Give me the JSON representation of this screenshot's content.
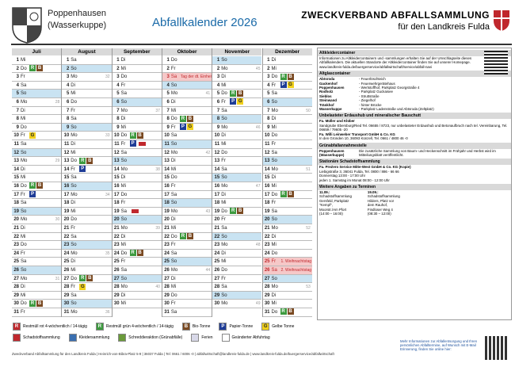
{
  "header": {
    "municipality": [
      "Poppenhausen",
      "(Wasserkuppe)"
    ],
    "title": "Abfallkalender 2026",
    "org": "ZWECKVERBAND ABFALLSAMMLUNG",
    "org_sub": "für den Landkreis Fulda"
  },
  "symbol_colors": {
    "R": "#3d9a3f",
    "B": "#7a4a22",
    "P": "#1e3c96",
    "G": "#f0d01c",
    "S": "#c0282d"
  },
  "months": [
    {
      "name": "Juli",
      "days": [
        {
          "d": 1,
          "w": "Mi"
        },
        {
          "d": 2,
          "w": "Do",
          "ev": [
            "R",
            "B"
          ]
        },
        {
          "d": 3,
          "w": "Fr"
        },
        {
          "d": 4,
          "w": "Sa"
        },
        {
          "d": 5,
          "w": "So"
        },
        {
          "d": 6,
          "w": "Mo",
          "kw": 28
        },
        {
          "d": 7,
          "w": "Di"
        },
        {
          "d": 8,
          "w": "Mi"
        },
        {
          "d": 9,
          "w": "Do"
        },
        {
          "d": 10,
          "w": "Fr",
          "ev": [
            "G"
          ]
        },
        {
          "d": 11,
          "w": "Sa"
        },
        {
          "d": 12,
          "w": "So"
        },
        {
          "d": 13,
          "w": "Mo",
          "kw": 29
        },
        {
          "d": 14,
          "w": "Di"
        },
        {
          "d": 15,
          "w": "Mi"
        },
        {
          "d": 16,
          "w": "Do",
          "ev": [
            "R",
            "B"
          ]
        },
        {
          "d": 17,
          "w": "Fr",
          "ev": [
            "P"
          ]
        },
        {
          "d": 18,
          "w": "Sa"
        },
        {
          "d": 19,
          "w": "So"
        },
        {
          "d": 20,
          "w": "Mo",
          "kw": 30
        },
        {
          "d": 21,
          "w": "Di"
        },
        {
          "d": 22,
          "w": "Mi"
        },
        {
          "d": 23,
          "w": "Do"
        },
        {
          "d": 24,
          "w": "Fr"
        },
        {
          "d": 25,
          "w": "Sa"
        },
        {
          "d": 26,
          "w": "So"
        },
        {
          "d": 27,
          "w": "Mo",
          "kw": 31
        },
        {
          "d": 28,
          "w": "Di"
        },
        {
          "d": 29,
          "w": "Mi"
        },
        {
          "d": 30,
          "w": "Do",
          "ev": [
            "R",
            "B"
          ]
        },
        {
          "d": 31,
          "w": "Fr"
        }
      ]
    },
    {
      "name": "August",
      "days": [
        {
          "d": 1,
          "w": "Sa"
        },
        {
          "d": 2,
          "w": "So"
        },
        {
          "d": 3,
          "w": "Mo",
          "kw": 32
        },
        {
          "d": 4,
          "w": "Di"
        },
        {
          "d": 5,
          "w": "Mi"
        },
        {
          "d": 6,
          "w": "Do"
        },
        {
          "d": 7,
          "w": "Fr"
        },
        {
          "d": 8,
          "w": "Sa"
        },
        {
          "d": 9,
          "w": "So"
        },
        {
          "d": 10,
          "w": "Mo",
          "kw": 33
        },
        {
          "d": 11,
          "w": "Di"
        },
        {
          "d": 12,
          "w": "Mi"
        },
        {
          "d": 13,
          "w": "Do",
          "ev": [
            "R",
            "B"
          ]
        },
        {
          "d": 14,
          "w": "Fr",
          "ev": [
            "P"
          ]
        },
        {
          "d": 15,
          "w": "Sa"
        },
        {
          "d": 16,
          "w": "So"
        },
        {
          "d": 17,
          "w": "Mo",
          "kw": 34
        },
        {
          "d": 18,
          "w": "Di"
        },
        {
          "d": 19,
          "w": "Mi"
        },
        {
          "d": 20,
          "w": "Do"
        },
        {
          "d": 21,
          "w": "Fr"
        },
        {
          "d": 22,
          "w": "Sa"
        },
        {
          "d": 23,
          "w": "So"
        },
        {
          "d": 24,
          "w": "Mo",
          "kw": 35
        },
        {
          "d": 25,
          "w": "Di"
        },
        {
          "d": 26,
          "w": "Mi"
        },
        {
          "d": 27,
          "w": "Do",
          "ev": [
            "R",
            "B"
          ]
        },
        {
          "d": 28,
          "w": "Fr",
          "ev": [
            "G"
          ]
        },
        {
          "d": 29,
          "w": "Sa"
        },
        {
          "d": 30,
          "w": "So"
        },
        {
          "d": 31,
          "w": "Mo",
          "kw": 36
        }
      ]
    },
    {
      "name": "September",
      "days": [
        {
          "d": 1,
          "w": "Di"
        },
        {
          "d": 2,
          "w": "Mi"
        },
        {
          "d": 3,
          "w": "Do"
        },
        {
          "d": 4,
          "w": "Fr"
        },
        {
          "d": 5,
          "w": "Sa"
        },
        {
          "d": 6,
          "w": "So"
        },
        {
          "d": 7,
          "w": "Mo",
          "kw": 37
        },
        {
          "d": 8,
          "w": "Di"
        },
        {
          "d": 9,
          "w": "Mi"
        },
        {
          "d": 10,
          "w": "Do",
          "ev": [
            "R",
            "B"
          ]
        },
        {
          "d": 11,
          "w": "Fr",
          "ev": [
            "P",
            "S"
          ]
        },
        {
          "d": 12,
          "w": "Sa"
        },
        {
          "d": 13,
          "w": "So"
        },
        {
          "d": 14,
          "w": "Mo",
          "kw": 38
        },
        {
          "d": 15,
          "w": "Di"
        },
        {
          "d": 16,
          "w": "Mi"
        },
        {
          "d": 17,
          "w": "Do"
        },
        {
          "d": 18,
          "w": "Fr"
        },
        {
          "d": 19,
          "w": "Sa",
          "ev": [
            "S"
          ]
        },
        {
          "d": 20,
          "w": "So"
        },
        {
          "d": 21,
          "w": "Mo",
          "kw": 39
        },
        {
          "d": 22,
          "w": "Di"
        },
        {
          "d": 23,
          "w": "Mi"
        },
        {
          "d": 24,
          "w": "Do",
          "ev": [
            "R",
            "B"
          ]
        },
        {
          "d": 25,
          "w": "Fr"
        },
        {
          "d": 26,
          "w": "Sa"
        },
        {
          "d": 27,
          "w": "So"
        },
        {
          "d": 28,
          "w": "Mo",
          "kw": 40
        },
        {
          "d": 29,
          "w": "Di"
        },
        {
          "d": 30,
          "w": "Mi"
        }
      ]
    },
    {
      "name": "Oktober",
      "days": [
        {
          "d": 1,
          "w": "Do"
        },
        {
          "d": 2,
          "w": "Fr"
        },
        {
          "d": 3,
          "w": "Sa",
          "holiday": true,
          "note": "Tag der dt. Einheit"
        },
        {
          "d": 4,
          "w": "So"
        },
        {
          "d": 5,
          "w": "Mo",
          "kw": 41
        },
        {
          "d": 6,
          "w": "Di"
        },
        {
          "d": 7,
          "w": "Mi"
        },
        {
          "d": 8,
          "w": "Do",
          "ev": [
            "R",
            "B"
          ]
        },
        {
          "d": 9,
          "w": "Fr",
          "ev": [
            "P",
            "G"
          ]
        },
        {
          "d": 10,
          "w": "Sa"
        },
        {
          "d": 11,
          "w": "So"
        },
        {
          "d": 12,
          "w": "Mo",
          "kw": 42
        },
        {
          "d": 13,
          "w": "Di"
        },
        {
          "d": 14,
          "w": "Mi"
        },
        {
          "d": 15,
          "w": "Do"
        },
        {
          "d": 16,
          "w": "Fr"
        },
        {
          "d": 17,
          "w": "Sa"
        },
        {
          "d": 18,
          "w": "So"
        },
        {
          "d": 19,
          "w": "Mo",
          "kw": 43
        },
        {
          "d": 20,
          "w": "Di"
        },
        {
          "d": 21,
          "w": "Mi"
        },
        {
          "d": 22,
          "w": "Do",
          "ev": [
            "R",
            "B"
          ]
        },
        {
          "d": 23,
          "w": "Fr"
        },
        {
          "d": 24,
          "w": "Sa"
        },
        {
          "d": 25,
          "w": "So"
        },
        {
          "d": 26,
          "w": "Mo",
          "kw": 44
        },
        {
          "d": 27,
          "w": "Di"
        },
        {
          "d": 28,
          "w": "Mi"
        },
        {
          "d": 29,
          "w": "Do"
        },
        {
          "d": 30,
          "w": "Fr"
        },
        {
          "d": 31,
          "w": "Sa"
        }
      ]
    },
    {
      "name": "November",
      "days": [
        {
          "d": 1,
          "w": "So"
        },
        {
          "d": 2,
          "w": "Mo",
          "kw": 45
        },
        {
          "d": 3,
          "w": "Di"
        },
        {
          "d": 4,
          "w": "Mi"
        },
        {
          "d": 5,
          "w": "Do",
          "ev": [
            "R",
            "B"
          ]
        },
        {
          "d": 6,
          "w": "Fr",
          "ev": [
            "P",
            "G"
          ]
        },
        {
          "d": 7,
          "w": "Sa"
        },
        {
          "d": 8,
          "w": "So"
        },
        {
          "d": 9,
          "w": "Mo",
          "kw": 46
        },
        {
          "d": 10,
          "w": "Di"
        },
        {
          "d": 11,
          "w": "Mi"
        },
        {
          "d": 12,
          "w": "Do"
        },
        {
          "d": 13,
          "w": "Fr"
        },
        {
          "d": 14,
          "w": "Sa"
        },
        {
          "d": 15,
          "w": "So"
        },
        {
          "d": 16,
          "w": "Mo",
          "kw": 47
        },
        {
          "d": 17,
          "w": "Di"
        },
        {
          "d": 18,
          "w": "Mi"
        },
        {
          "d": 19,
          "w": "Do",
          "ev": [
            "R",
            "B"
          ]
        },
        {
          "d": 20,
          "w": "Fr"
        },
        {
          "d": 21,
          "w": "Sa"
        },
        {
          "d": 22,
          "w": "So"
        },
        {
          "d": 23,
          "w": "Mo",
          "kw": 48
        },
        {
          "d": 24,
          "w": "Di"
        },
        {
          "d": 25,
          "w": "Mi"
        },
        {
          "d": 26,
          "w": "Do"
        },
        {
          "d": 27,
          "w": "Fr"
        },
        {
          "d": 28,
          "w": "Sa"
        },
        {
          "d": 29,
          "w": "So"
        },
        {
          "d": 30,
          "w": "Mo",
          "kw": 49
        }
      ]
    },
    {
      "name": "Dezember",
      "days": [
        {
          "d": 1,
          "w": "Di"
        },
        {
          "d": 2,
          "w": "Mi"
        },
        {
          "d": 3,
          "w": "Do",
          "ev": [
            "R",
            "B"
          ]
        },
        {
          "d": 4,
          "w": "Fr",
          "ev": [
            "P",
            "G"
          ]
        },
        {
          "d": 5,
          "w": "Sa"
        },
        {
          "d": 6,
          "w": "So"
        },
        {
          "d": 7,
          "w": "Mo",
          "kw": 50
        },
        {
          "d": 8,
          "w": "Di"
        },
        {
          "d": 9,
          "w": "Mi"
        },
        {
          "d": 10,
          "w": "Do"
        },
        {
          "d": 11,
          "w": "Fr"
        },
        {
          "d": 12,
          "w": "Sa"
        },
        {
          "d": 13,
          "w": "So"
        },
        {
          "d": 14,
          "w": "Mo",
          "kw": 51
        },
        {
          "d": 15,
          "w": "Di"
        },
        {
          "d": 16,
          "w": "Mi"
        },
        {
          "d": 17,
          "w": "Do",
          "ev": [
            "R",
            "B"
          ]
        },
        {
          "d": 18,
          "w": "Fr"
        },
        {
          "d": 19,
          "w": "Sa"
        },
        {
          "d": 20,
          "w": "So"
        },
        {
          "d": 21,
          "w": "Mo",
          "kw": 52
        },
        {
          "d": 22,
          "w": "Di"
        },
        {
          "d": 23,
          "w": "Mi"
        },
        {
          "d": 24,
          "w": "Do"
        },
        {
          "d": 25,
          "w": "Fr",
          "holiday": true,
          "note": "1. Weihnachtstag"
        },
        {
          "d": 26,
          "w": "Sa",
          "holiday": true,
          "note": "2. Weihnachtstag"
        },
        {
          "d": 27,
          "w": "So"
        },
        {
          "d": 28,
          "w": "Mo",
          "kw": 53
        },
        {
          "d": 29,
          "w": "Di"
        },
        {
          "d": 30,
          "w": "Mi"
        },
        {
          "d": 31,
          "w": "Do",
          "ev": [
            "R",
            "B"
          ]
        }
      ]
    }
  ],
  "info": [
    {
      "title": "Altkleidercontainer",
      "items": [
        {
          "t": "Informationen zu Altkleidercontainern und -sammlungen erhalten Sie auf der Umschlagseite dieses Abfallkalenders. Die aktuellen Standorte der Altkleidercontainer finden Sie auf unserer Homepage. www.landkreis-fulda.de/buergerservice/abfallwirtschaft/service/abfall-navi"
        }
      ]
    },
    {
      "title": "Altglascontainer",
      "items": [
        {
          "place": "Abtsroda",
          "loc": "- Feuerlöschteich"
        },
        {
          "place": "Gackenhof",
          "loc": "- Feuerwehrgerätehaus"
        },
        {
          "place": "Poppenhausen",
          "loc": "- Wertstoffhof, Parkplatz Georgstraße 4"
        },
        {
          "place": "Rodholz",
          "loc": "- Parkplatz Guckaisee"
        },
        {
          "place": "Sieblos",
          "loc": "- Struttstraße"
        },
        {
          "place": "Steinwand",
          "loc": "- Ziegelhof"
        },
        {
          "place": "Tränkhof",
          "loc": "- hinter Brücke"
        },
        {
          "place": "Wasserkuppe",
          "loc": "- Parkplatz Ladenstraße und Abtsroda (Zeltplatz)"
        }
      ]
    },
    {
      "title": "Unbelasteter Erdaushub und mineralischer Bauschutt",
      "items": [
        {
          "b": "Fa. Müller und Klüber"
        },
        {
          "t": "Sandgrube Ebersburg/Ried Tel. 06655 / 8723, nur unbelasteter Erdaushub und Betonaufbruch nach tel. Vereinbarung, Tel. 06659 / 79605 -20"
        },
        {
          "b": "Fa. Willi Leinweber Transport GmbH & Co. KG"
        },
        {
          "t": "In den Gründen 10, 36093 Künzell, Tel. 0661 / 4800 46 -0"
        }
      ]
    },
    {
      "title": "Grünabfallannahmestelle",
      "items": [
        {
          "place": "Poppenhausen (Wasserkuppe)",
          "loc": "Die zusätzliche Sammlung von Baum- und Heckenschnitt im Frühjahr und Herbst wird im Mitteilungsblatt veröffentlicht."
        }
      ]
    },
    {
      "title": "Stationäre Schadstoffsammlung",
      "items": [
        {
          "b": "Fa. PreZero Service Mitte-West GmbH & Co. KG (Kopie)"
        },
        {
          "t": "Liebigstraße 3, 36041 Fulda, Tel. 0800 / 886 - 66 66"
        },
        {
          "t": "Donnerstag 13:00 - 17:00 Uhr"
        },
        {
          "t": "jeden 1. Samstag im Monat 08:00 - 12:00 Uhr"
        }
      ]
    },
    {
      "title": "Weitere Angaben zu Terminen",
      "columns": [
        [
          "11.09.:",
          "Schadstoffsammlung",
          "Gersfeld, Parkplatz",
          "\"Kempf\",",
          "Moorstr./Am Pfort",
          "(14:00 – 16:00)"
        ],
        [
          "19.09.:",
          "Schadstoffsammlung",
          "Hilders, Platz vor",
          "dem Rauhof,",
          "Findloser Weg 4",
          "(08:30 – 12:00)"
        ]
      ]
    }
  ],
  "legend": [
    {
      "symbol": "R",
      "color": "#c0282d",
      "label": "Restmüll rot 4-wöchentlich / 14-tägig"
    },
    {
      "symbol": "R",
      "color": "#3d9a3f",
      "label": "Restmüll grün 4-wöchentlich / 14-tägig"
    },
    {
      "symbol": "B",
      "color": "#7a4a22",
      "label": "Bio-Tonne"
    },
    {
      "symbol": "P",
      "color": "#1e3c96",
      "label": "Papier-Tonne"
    },
    {
      "symbol": "G",
      "color": "#f0d01c",
      "label": "Gelbe Tonne"
    },
    {
      "color": "#c0282d",
      "label": "Schadstoffsammlung"
    },
    {
      "color": "#3a6fb0",
      "label": "Kleidersammlung"
    },
    {
      "color": "#6a9a3a",
      "label": "Schreddieraktion (Grünabfälle)"
    },
    {
      "color": "#d8d8e8",
      "label": "Ferien"
    },
    {
      "color": "#ffffff",
      "label": "Geänderter Abfuhrtag"
    }
  ],
  "footer": {
    "address": "Zweckverband Abfallsammlung für den Landkreis Fulda | Heinrich-von-Bibra-Platz 5-9 | 36037 Fulda | Tel: 0661 / 6006 -0 | abfallwirtschaft@landkreis-fulda.de | www.landkreis-fulda.de/buergerservice/abfallwirtschaft",
    "online": "Mehr Informationen zur Abfallentsorgung und Ihren persönlichen Abfalltermine, auf Wunsch mit E-Mail Erinnerung, finden Sie online hier:"
  }
}
